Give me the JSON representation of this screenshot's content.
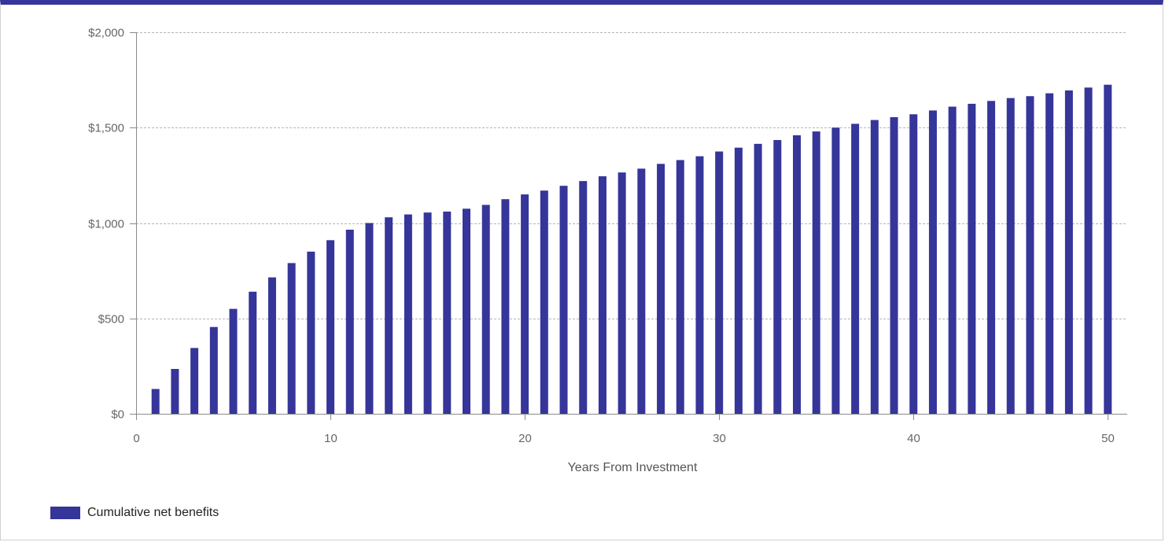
{
  "chart_data": {
    "type": "bar",
    "xlabel": "Years From Investment",
    "ylabel": "",
    "xlim": [
      0,
      51
    ],
    "ylim": [
      0,
      2000
    ],
    "x_ticks": [
      0,
      10,
      20,
      30,
      40,
      50
    ],
    "x_tick_labels": [
      "0",
      "10",
      "20",
      "30",
      "40",
      "50"
    ],
    "y_ticks": [
      0,
      500,
      1000,
      1500,
      2000
    ],
    "y_tick_labels": [
      "$0",
      "$500",
      "$1,000",
      "$1,500",
      "$2,000"
    ],
    "grid": true,
    "legend_position": "bottom-left",
    "series": [
      {
        "name": "Cumulative net benefits",
        "color": "#35359a",
        "x": [
          1,
          2,
          3,
          4,
          5,
          6,
          7,
          8,
          9,
          10,
          11,
          12,
          13,
          14,
          15,
          16,
          17,
          18,
          19,
          20,
          21,
          22,
          23,
          24,
          25,
          26,
          27,
          28,
          29,
          30,
          31,
          32,
          33,
          34,
          35,
          36,
          37,
          38,
          39,
          40,
          41,
          42,
          43,
          44,
          45,
          46,
          47,
          48,
          49,
          50
        ],
        "values": [
          130,
          235,
          345,
          455,
          550,
          640,
          715,
          790,
          850,
          910,
          965,
          1000,
          1030,
          1045,
          1055,
          1060,
          1075,
          1095,
          1125,
          1150,
          1170,
          1195,
          1220,
          1245,
          1265,
          1285,
          1310,
          1330,
          1350,
          1375,
          1395,
          1415,
          1435,
          1460,
          1480,
          1500,
          1520,
          1540,
          1555,
          1570,
          1590,
          1610,
          1625,
          1640,
          1655,
          1665,
          1680,
          1695,
          1710,
          1725
        ]
      }
    ]
  }
}
